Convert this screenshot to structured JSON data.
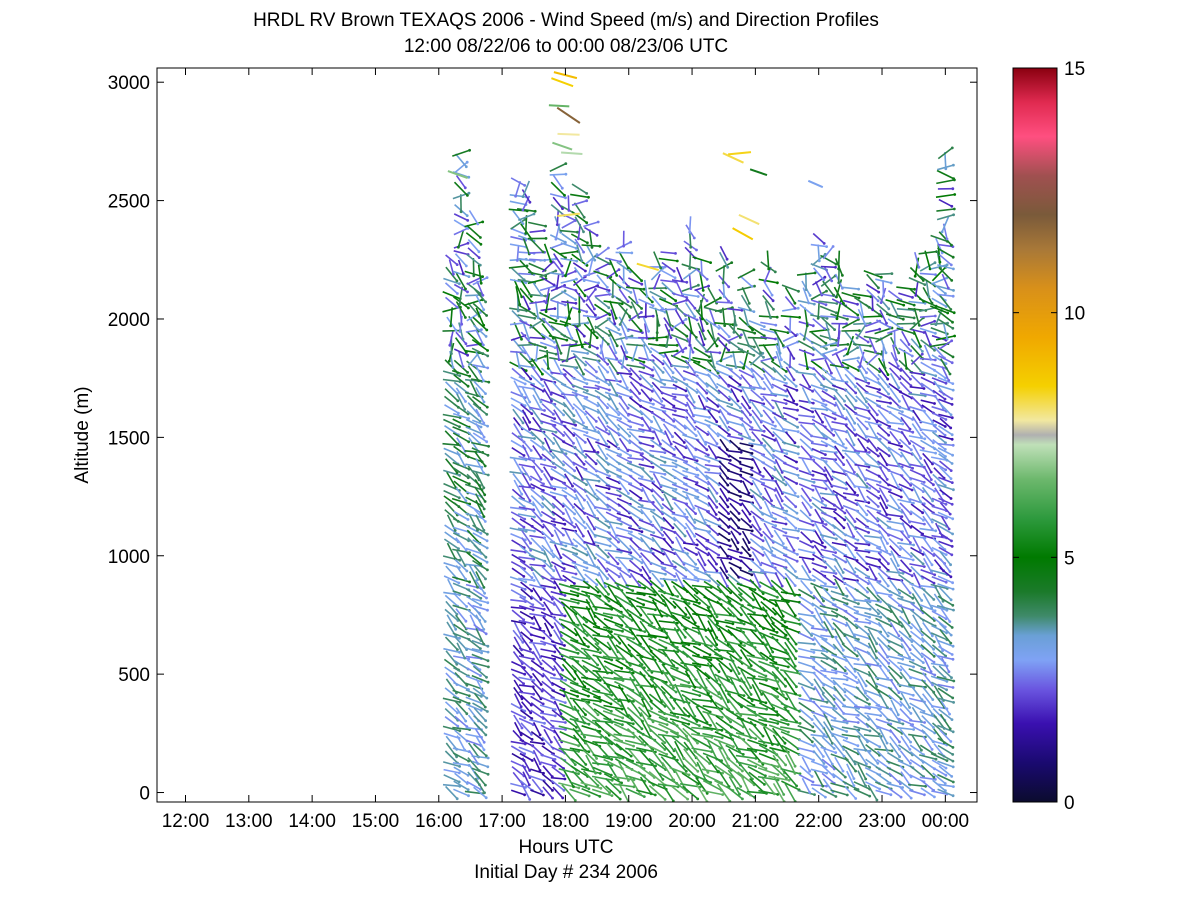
{
  "chart_data": {
    "type": "scatter",
    "title": "HRDL RV Brown TEXAQS 2006 - Wind Speed (m/s) and Direction Profiles",
    "subtitle": "12:00 08/22/06 to 00:00 08/23/06  UTC",
    "xlabel": "Hours UTC",
    "xlabel2": "Initial Day # 234  2006",
    "ylabel": "Altitude (m)",
    "x_ticks": [
      "12:00",
      "13:00",
      "14:00",
      "15:00",
      "16:00",
      "17:00",
      "18:00",
      "19:00",
      "20:00",
      "21:00",
      "22:00",
      "23:00",
      "00:00"
    ],
    "xlim_hours": [
      11.55,
      24.5
    ],
    "y_ticks": [
      0,
      500,
      1000,
      1500,
      2000,
      2500,
      3000
    ],
    "ylim": [
      -40,
      3060
    ],
    "colorbar": {
      "label": "Wind speed (m/s)",
      "ticks": [
        0,
        5,
        10,
        15
      ],
      "range": [
        0,
        15
      ],
      "stops": [
        {
          "v": 0.0,
          "color": "#0b0b2e"
        },
        {
          "v": 0.8,
          "color": "#1a0a70"
        },
        {
          "v": 1.6,
          "color": "#3a10b0"
        },
        {
          "v": 2.3,
          "color": "#6a55e0"
        },
        {
          "v": 2.9,
          "color": "#7fa2f5"
        },
        {
          "v": 3.4,
          "color": "#6aa0d6"
        },
        {
          "v": 3.8,
          "color": "#3f8a6a"
        },
        {
          "v": 4.3,
          "color": "#1b7a2a"
        },
        {
          "v": 5.0,
          "color": "#007a00"
        },
        {
          "v": 5.8,
          "color": "#2e9a3e"
        },
        {
          "v": 6.6,
          "color": "#6db86d"
        },
        {
          "v": 7.3,
          "color": "#bfe0b8"
        },
        {
          "v": 7.5,
          "color": "#b0b0b0"
        },
        {
          "v": 7.8,
          "color": "#f2e8a0"
        },
        {
          "v": 8.5,
          "color": "#f5d000"
        },
        {
          "v": 9.5,
          "color": "#f0a800"
        },
        {
          "v": 10.5,
          "color": "#d8901a"
        },
        {
          "v": 11.3,
          "color": "#a87838"
        },
        {
          "v": 12.0,
          "color": "#7a5a3a"
        },
        {
          "v": 12.8,
          "color": "#a05050"
        },
        {
          "v": 13.6,
          "color": "#ff4f80"
        },
        {
          "v": 14.3,
          "color": "#e02a50"
        },
        {
          "v": 15.0,
          "color": "#8a0010"
        }
      ]
    },
    "profile_times_hours": [
      16.2,
      16.35,
      16.55,
      16.65,
      17.25,
      17.38,
      17.55,
      17.72,
      17.88,
      18.05,
      18.22,
      18.4,
      18.58,
      18.75,
      18.92,
      19.1,
      19.27,
      19.45,
      19.62,
      19.8,
      19.97,
      20.15,
      20.32,
      20.5,
      20.67,
      20.85,
      21.02,
      21.2,
      21.37,
      21.55,
      21.8,
      22.0,
      22.15,
      22.32,
      22.5,
      22.68,
      22.85,
      23.02,
      23.2,
      23.37,
      23.55,
      23.72,
      23.9,
      24.0
    ],
    "profile_top_m": [
      2250,
      2700,
      2450,
      2200,
      2600,
      2550,
      2400,
      2300,
      2650,
      2500,
      2550,
      2400,
      2300,
      2250,
      2350,
      2200,
      2150,
      2250,
      2300,
      2200,
      2400,
      2250,
      2100,
      2300,
      2050,
      2200,
      2000,
      2250,
      1950,
      2150,
      2200,
      2350,
      2300,
      2250,
      2150,
      2100,
      2200,
      2200,
      2100,
      2150,
      2250,
      2300,
      2350,
      2700
    ],
    "scattered_points": [
      {
        "t": 17.95,
        "alt": 3000,
        "speed": 8.5
      },
      {
        "t": 18.0,
        "alt": 3030,
        "speed": 9.0
      },
      {
        "t": 17.9,
        "alt": 2900,
        "speed": 6.5
      },
      {
        "t": 18.05,
        "alt": 2860,
        "speed": 11.8
      },
      {
        "t": 18.05,
        "alt": 2780,
        "speed": 7.8
      },
      {
        "t": 17.95,
        "alt": 2730,
        "speed": 6.8
      },
      {
        "t": 18.1,
        "alt": 2700,
        "speed": 7.2
      },
      {
        "t": 18.05,
        "alt": 2440,
        "speed": 8.1
      },
      {
        "t": 20.65,
        "alt": 2680,
        "speed": 8.2
      },
      {
        "t": 20.75,
        "alt": 2700,
        "speed": 8.4
      },
      {
        "t": 20.9,
        "alt": 2420,
        "speed": 8.0
      },
      {
        "t": 20.8,
        "alt": 2360,
        "speed": 8.6
      },
      {
        "t": 19.3,
        "alt": 2220,
        "speed": 8.3
      },
      {
        "t": 21.05,
        "alt": 2620,
        "speed": 4.5
      },
      {
        "t": 21.95,
        "alt": 2570,
        "speed": 3.0
      },
      {
        "t": 16.3,
        "alt": 2610,
        "speed": 6.8
      }
    ],
    "grid": false,
    "legend": "colorbar right"
  }
}
